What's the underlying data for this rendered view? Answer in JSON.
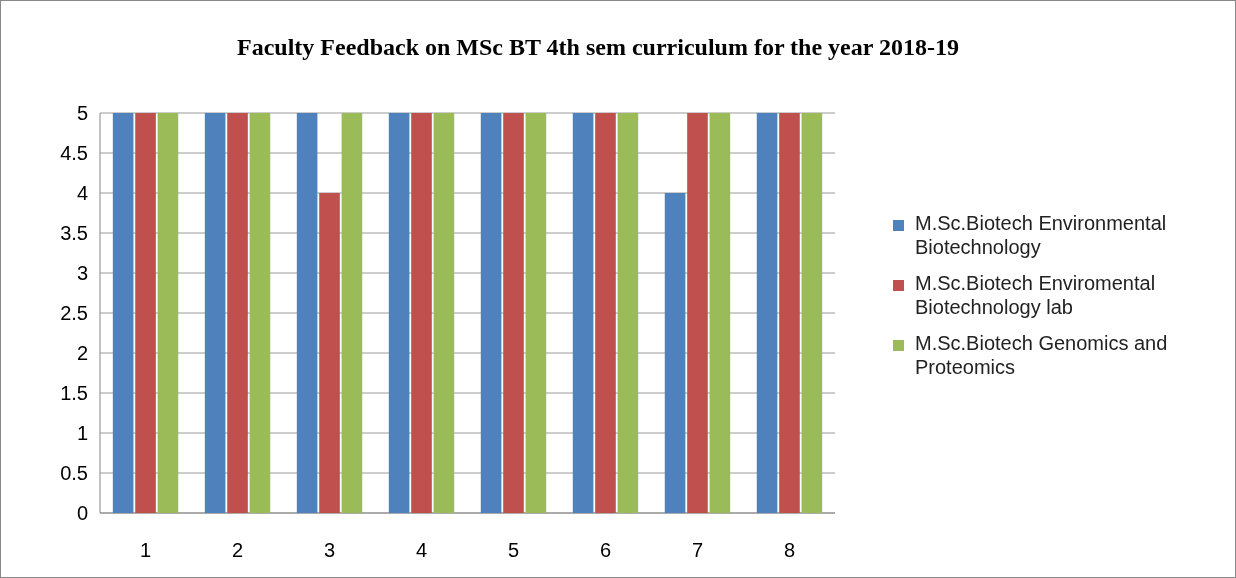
{
  "chart_data": {
    "type": "bar",
    "title": "Faculty Feedback on MSc BT 4th sem curriculum for the year 2018-19",
    "categories": [
      "1",
      "2",
      "3",
      "4",
      "5",
      "6",
      "7",
      "8"
    ],
    "series": [
      {
        "name": "M.Sc.Biotech Environmental Biotechnology",
        "color": "#4f81bd",
        "values": [
          5,
          5,
          5,
          5,
          5,
          5,
          4,
          5
        ]
      },
      {
        "name": "M.Sc.Biotech Enviromental Biotechnology lab",
        "color": "#c0504d",
        "values": [
          5,
          5,
          4,
          5,
          5,
          5,
          5,
          5
        ]
      },
      {
        "name": "M.Sc.Biotech Genomics and Proteomics",
        "color": "#9bbb59",
        "values": [
          5,
          5,
          5,
          5,
          5,
          5,
          5,
          5
        ]
      }
    ],
    "ylim": [
      0,
      5
    ],
    "yticks": [
      0,
      0.5,
      1,
      1.5,
      2,
      2.5,
      3,
      3.5,
      4,
      4.5,
      5
    ],
    "grid": "y",
    "legend": "right"
  }
}
